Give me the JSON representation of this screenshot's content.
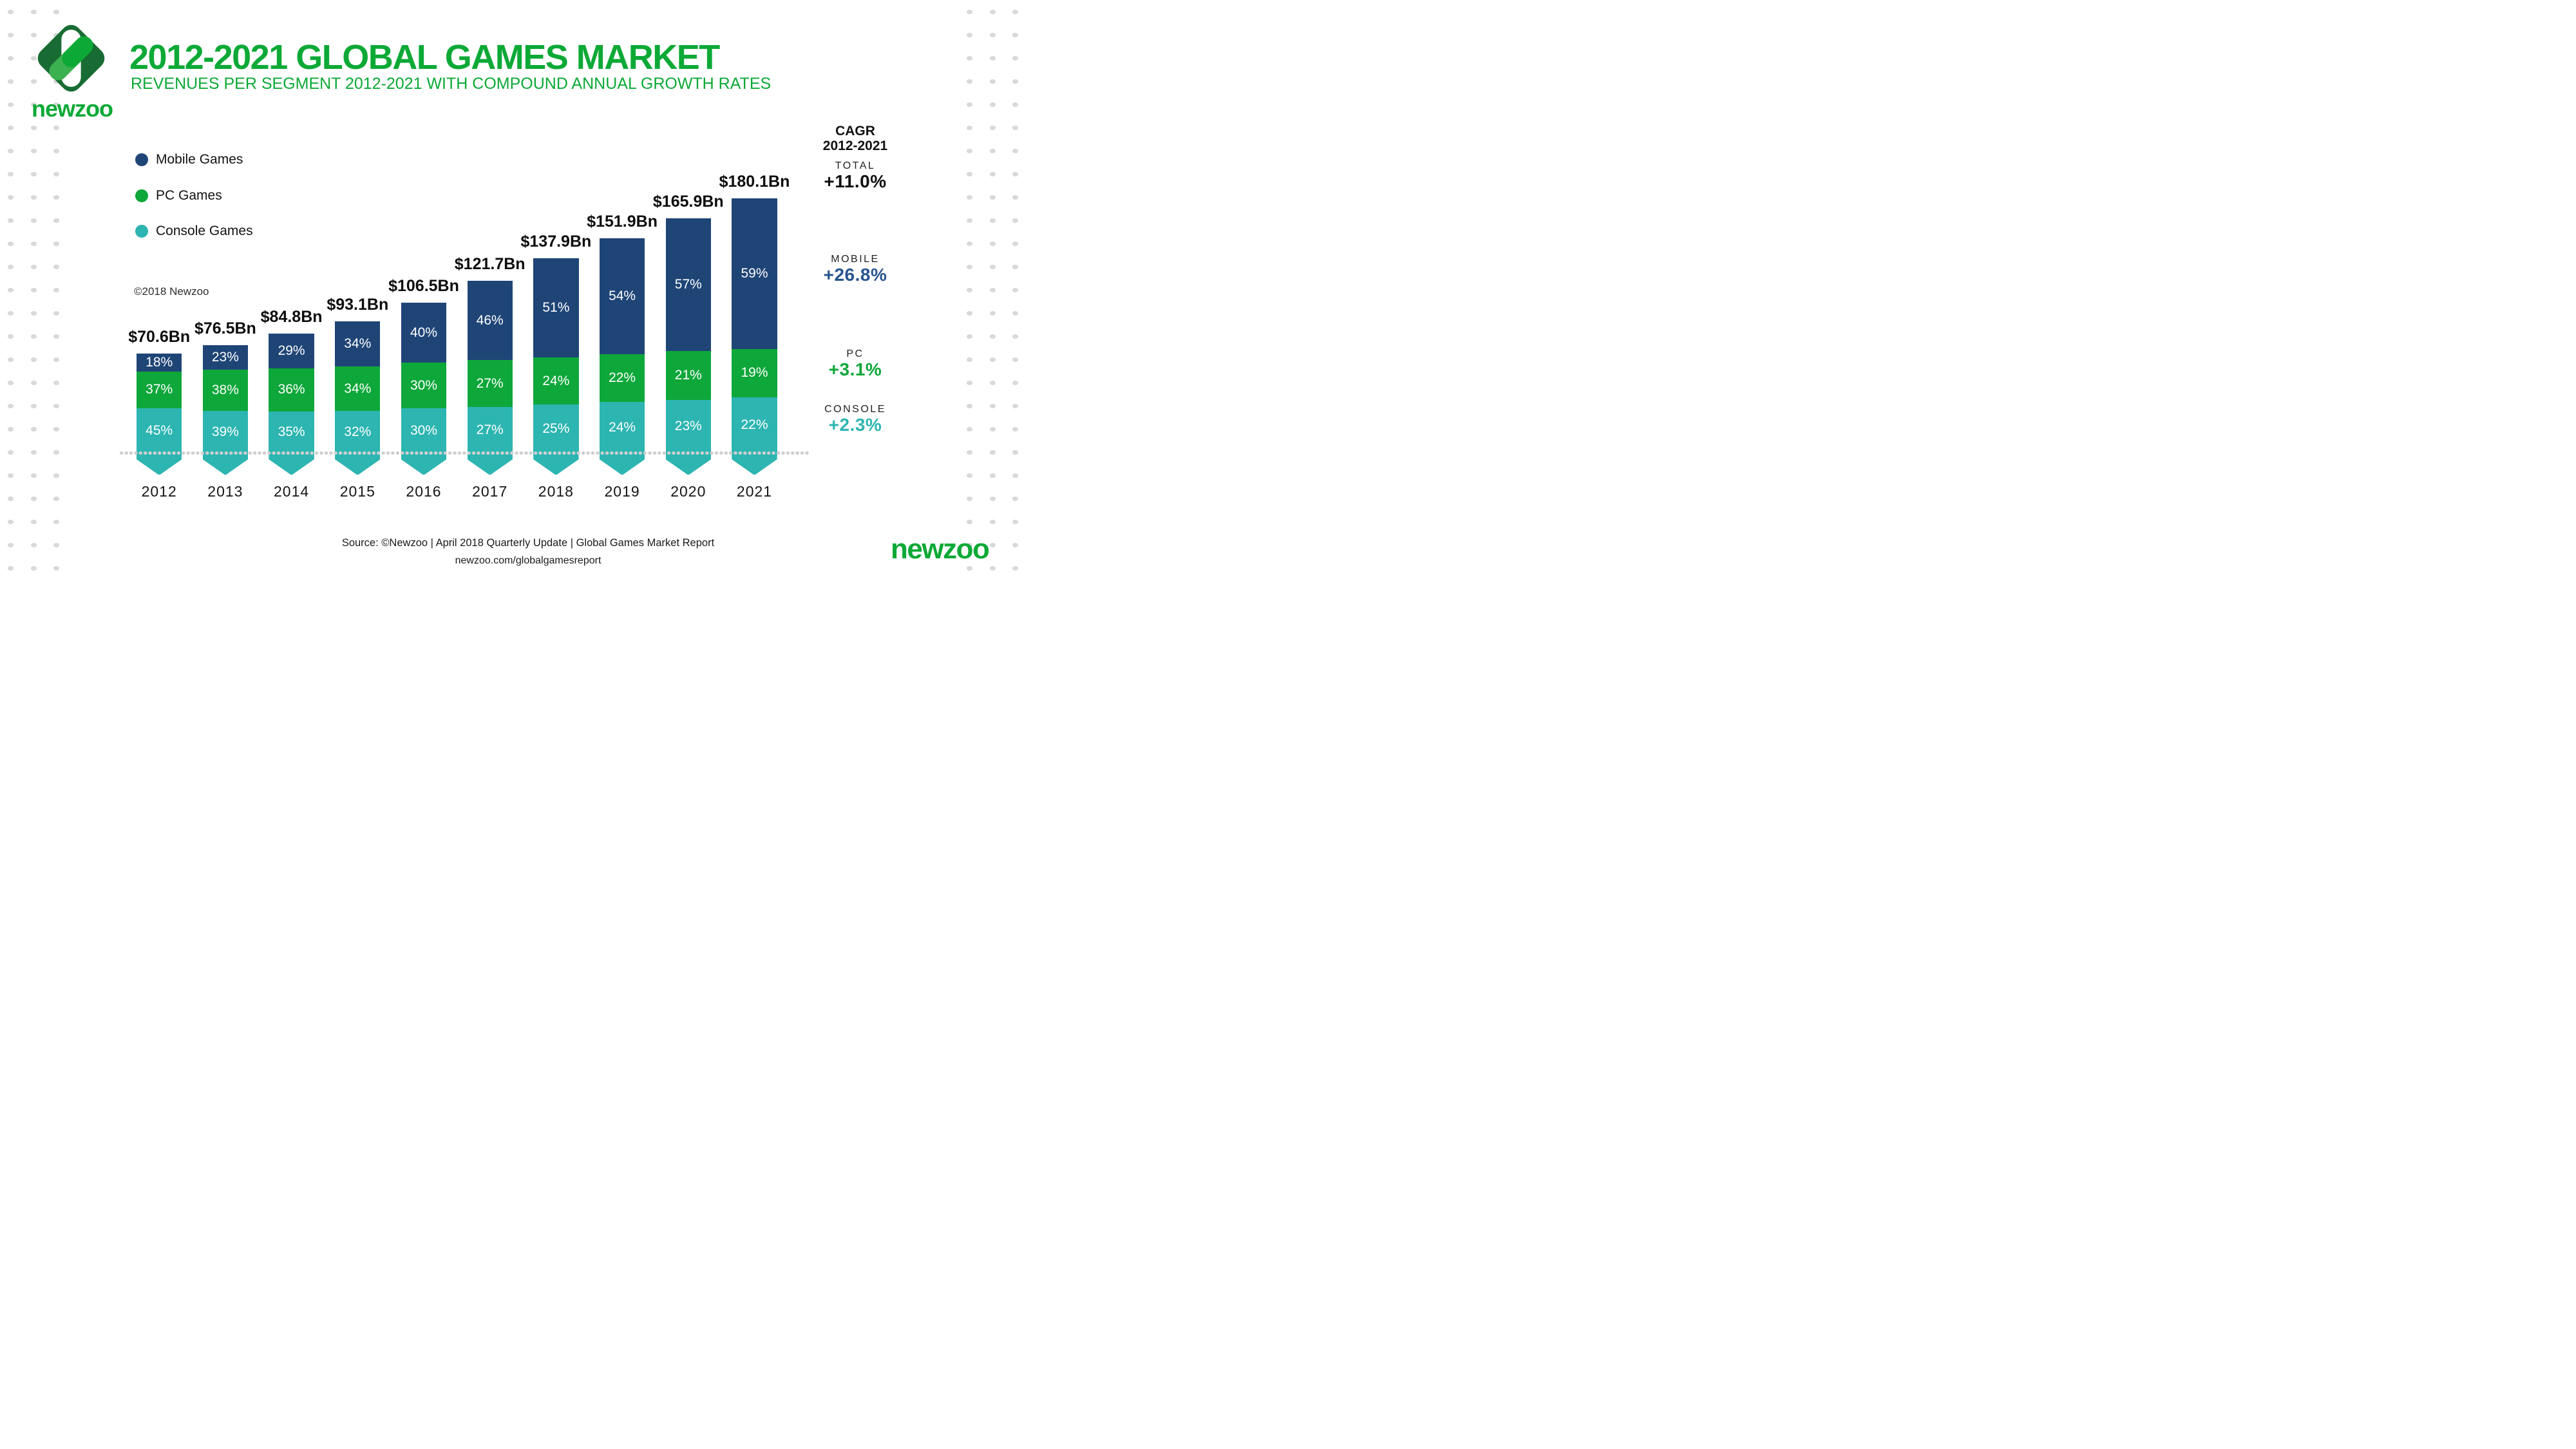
{
  "header": {
    "title": "2012-2021 GLOBAL GAMES MARKET",
    "subtitle": "REVENUES PER SEGMENT 2012-2021 WITH COMPOUND ANNUAL GROWTH RATES"
  },
  "brand": {
    "wordmark": "newzoo",
    "logo_colors": {
      "diamond": "#186c33",
      "capsule_white": "#ffffff",
      "capsule_light_green": "#3cb14f",
      "capsule_green": "#0ca936"
    },
    "accent_green": "#0ca936"
  },
  "legend": [
    {
      "label": "Mobile Games",
      "color": "#1f4577"
    },
    {
      "label": "PC Games",
      "color": "#0ea73a"
    },
    {
      "label": "Console Games",
      "color": "#2db5b1"
    }
  ],
  "copyright_note": "©2018 Newzoo",
  "chart_data": {
    "type": "bar",
    "subtype": "stacked-percent-column",
    "title": "2012-2021 Global Games Market",
    "categories": [
      "2012",
      "2013",
      "2014",
      "2015",
      "2016",
      "2017",
      "2018",
      "2019",
      "2020",
      "2021"
    ],
    "totals_bn": [
      70.6,
      76.5,
      84.8,
      93.1,
      106.5,
      121.7,
      137.9,
      151.9,
      165.9,
      180.1
    ],
    "total_labels": [
      "$70.6Bn",
      "$76.5Bn",
      "$84.8Bn",
      "$93.1Bn",
      "$106.5Bn",
      "$121.7Bn",
      "$137.9Bn",
      "$151.9Bn",
      "$165.9Bn",
      "$180.1Bn"
    ],
    "series": [
      {
        "name": "Mobile Games",
        "color": "#1f4577",
        "pct": [
          18,
          23,
          29,
          34,
          40,
          46,
          51,
          54,
          57,
          59
        ]
      },
      {
        "name": "PC Games",
        "color": "#0ea73a",
        "pct": [
          37,
          38,
          36,
          34,
          30,
          27,
          24,
          22,
          21,
          19
        ]
      },
      {
        "name": "Console Games",
        "color": "#2db5b1",
        "pct": [
          45,
          39,
          35,
          32,
          30,
          27,
          25,
          24,
          23,
          22
        ]
      }
    ],
    "ylim": [
      0,
      180.1
    ],
    "grid": false,
    "legend_position": "upper-left",
    "baseline_style": "dotted"
  },
  "cagr": {
    "heading_line1": "CAGR",
    "heading_line2": "2012-2021",
    "items": [
      {
        "label": "TOTAL",
        "value": "+11.0%",
        "color": "#111111"
      },
      {
        "label": "MOBILE",
        "value": "+26.8%",
        "color": "#28548e"
      },
      {
        "label": "PC",
        "value": "+3.1%",
        "color": "#0ea73a"
      },
      {
        "label": "CONSOLE",
        "value": "+2.3%",
        "color": "#2db5b1"
      }
    ]
  },
  "footer": {
    "source": "Source: ©Newzoo | April 2018 Quarterly Update | Global Games Market Report",
    "url": "newzoo.com/globalgamesreport"
  }
}
